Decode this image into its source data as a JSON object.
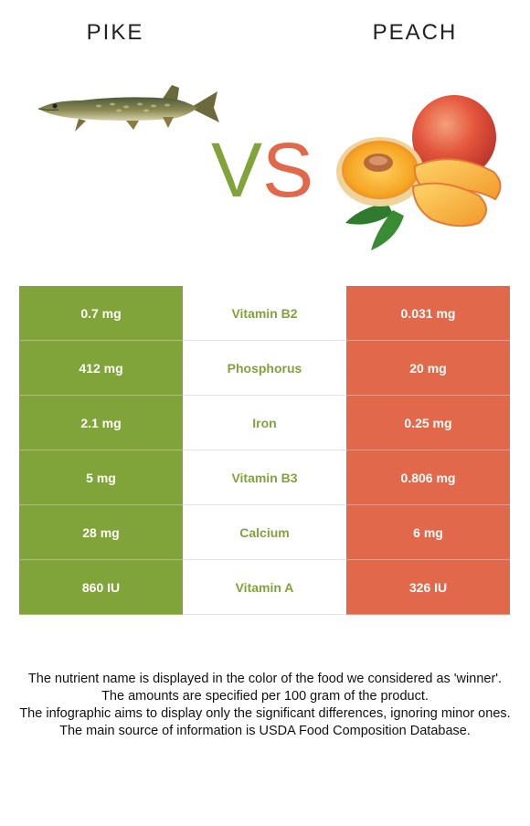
{
  "header": {
    "left_food": "PIKE",
    "right_food": "PEACH",
    "vs_v": "V",
    "vs_s": "S"
  },
  "colors": {
    "left": "#80a33a",
    "right": "#e2684b"
  },
  "icons": {
    "left_image": "pike-fish-image",
    "right_image": "peach-fruit-image"
  },
  "rows": [
    {
      "left": "0.7 mg",
      "nutrient": "Vitamin B2",
      "right": "0.031 mg",
      "winner": "left"
    },
    {
      "left": "412 mg",
      "nutrient": "Phosphorus",
      "right": "20 mg",
      "winner": "left"
    },
    {
      "left": "2.1 mg",
      "nutrient": "Iron",
      "right": "0.25 mg",
      "winner": "left"
    },
    {
      "left": "5 mg",
      "nutrient": "Vitamin B3",
      "right": "0.806 mg",
      "winner": "left"
    },
    {
      "left": "28 mg",
      "nutrient": "Calcium",
      "right": "6 mg",
      "winner": "left"
    },
    {
      "left": "860 IU",
      "nutrient": "Vitamin A",
      "right": "326 IU",
      "winner": "left"
    }
  ],
  "notes": [
    "The nutrient name is displayed in the color of the food we considered as 'winner'.",
    "The amounts are specified per 100 gram of the product.",
    "The infographic aims to display only the significant differences, ignoring minor ones.",
    "The main source of information is USDA Food Composition Database."
  ]
}
